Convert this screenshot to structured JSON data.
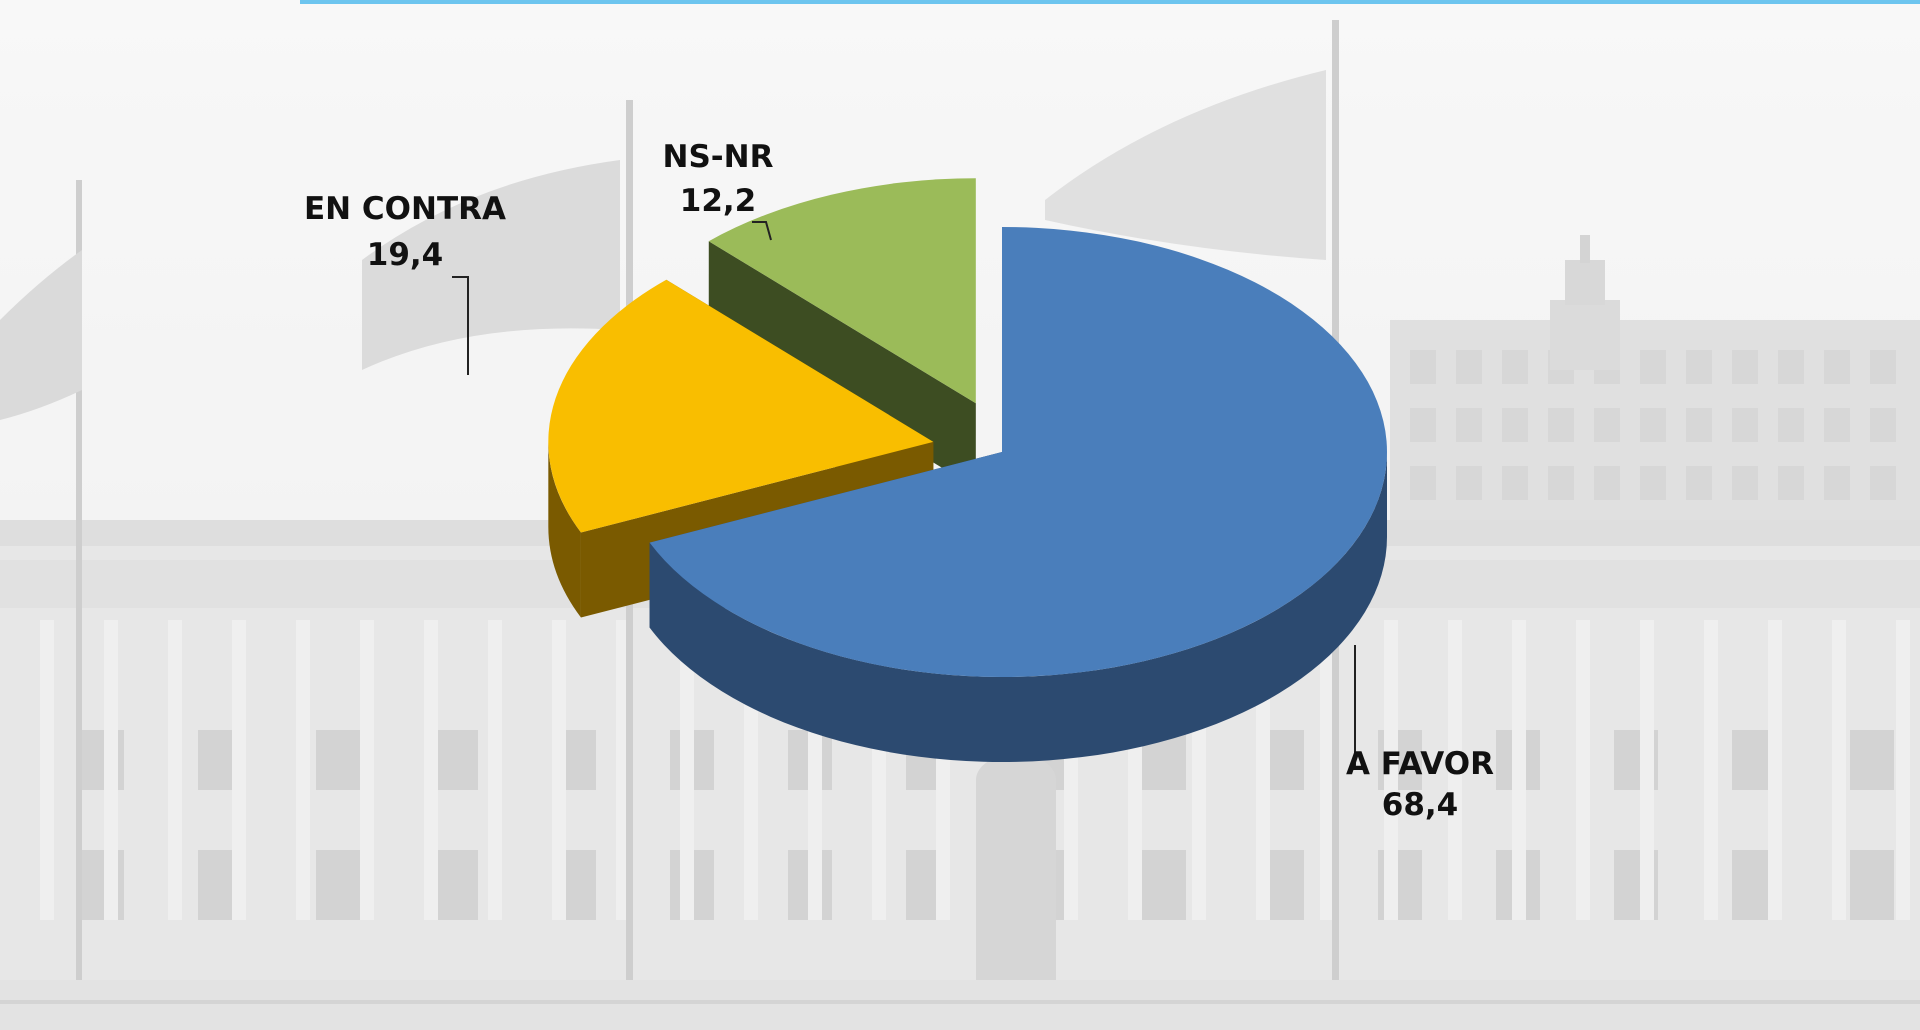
{
  "colors": {
    "top_accent": "#1fa6e6",
    "background": "#e9e9e9",
    "label_text": "#111111"
  },
  "chart_data": {
    "type": "pie",
    "style": "3d-exploded",
    "title": "",
    "legend": "none",
    "slices": [
      {
        "label": "A FAVOR",
        "value": 68.4,
        "value_text": "68,4",
        "color": "#4a7ebb",
        "side_color": "#2c4a70"
      },
      {
        "label": "EN CONTRA",
        "value": 19.4,
        "value_text": "19,4",
        "color": "#f9be00",
        "side_color": "#7a5a00"
      },
      {
        "label": "NS-NR",
        "value": 12.2,
        "value_text": "12,2",
        "color": "#9bbb59",
        "side_color": "#3d4d22"
      }
    ]
  }
}
